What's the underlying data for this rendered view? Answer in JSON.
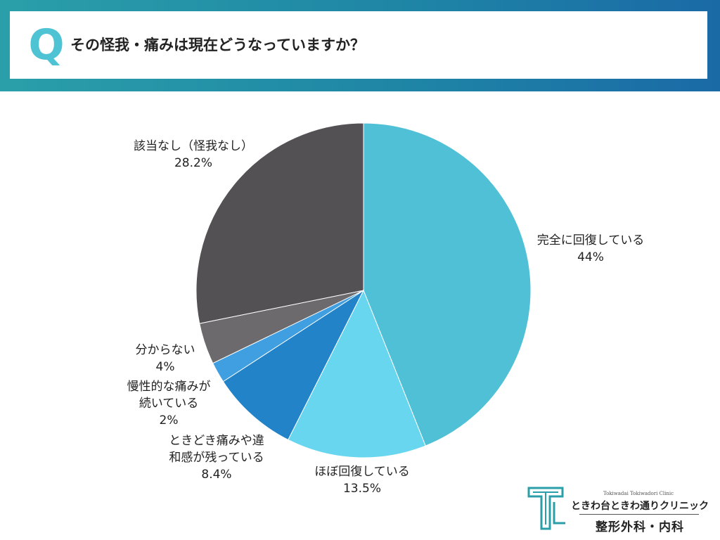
{
  "header": {
    "q_mark": "Q",
    "question": "その怪我・痛みは現在どうなっていますか？"
  },
  "chart_data": {
    "type": "pie",
    "title": "その怪我・痛みは現在どうなっていますか？",
    "slices": [
      {
        "lines": [
          "完全に回復している"
        ],
        "value_label": "44%",
        "value": 44,
        "color": "#4fc0d6"
      },
      {
        "lines": [
          "ほぼ回復している"
        ],
        "value_label": "13.5%",
        "value": 13.5,
        "color": "#68d6ef"
      },
      {
        "lines": [
          "ときどき痛みや違",
          "和感が残っている"
        ],
        "value_label": "8.4%",
        "value": 8.4,
        "color": "#2283c9"
      },
      {
        "lines": [
          "慢性的な痛みが",
          "続いている"
        ],
        "value_label": "2%",
        "value": 2,
        "color": "#3f9fe0"
      },
      {
        "lines": [
          "分からない"
        ],
        "value_label": "4%",
        "value": 4,
        "color": "#6c6a6c"
      },
      {
        "lines": [
          "該当なし（怪我なし）"
        ],
        "value_label": "28.2%",
        "value": 28.2,
        "color": "#545155"
      }
    ]
  },
  "logo": {
    "en_name": "Tokiwadai Tokiwadori Clinic",
    "name": "ときわ台ときわ通りクリニック",
    "departments": "整形外科・内科",
    "mark_color": "#2a9fa9"
  }
}
